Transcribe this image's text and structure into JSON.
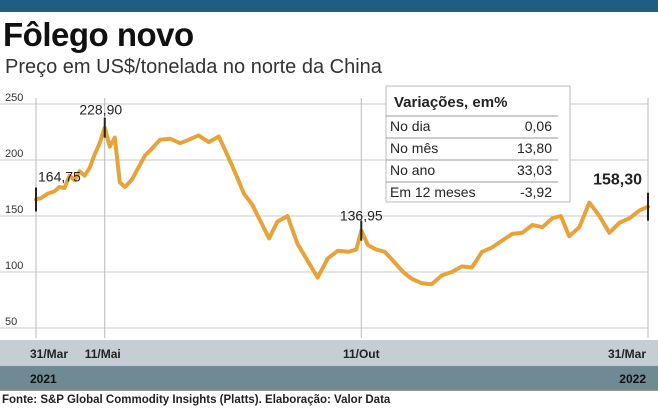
{
  "title": "Fôlego novo",
  "subtitle": "Preço em US$/tonelada no norte da China",
  "source": "Fonte: S&P Global Commodity Insights (Platts). Elaboração: Valor Data",
  "colors": {
    "line": "#e8a23a",
    "topbar": "#1f5e7e",
    "date_band": "#c7ced3",
    "year_band": "#6f8a94",
    "grid": "#c8c8c8"
  },
  "variations": {
    "title": "Variações, em%",
    "rows": [
      {
        "label": "No dia",
        "value": "0,06"
      },
      {
        "label": "No mês",
        "value": "13,80"
      },
      {
        "label": "No ano",
        "value": "33,03"
      },
      {
        "label": "Em 12 meses",
        "value": "-3,92"
      }
    ]
  },
  "chart_data": {
    "type": "line",
    "title": "Fôlego novo",
    "subtitle": "Preço em US$/tonelada no norte da China",
    "ylim": [
      50,
      250
    ],
    "yticks": [
      50,
      100,
      150,
      200,
      250
    ],
    "x_range": [
      "2021-03-31",
      "2022-03-31"
    ],
    "grid": true,
    "date_labels": [
      {
        "date": "2021-03-31",
        "label": "31/Mar"
      },
      {
        "date": "2021-05-11",
        "label": "11/Mai"
      },
      {
        "date": "2021-10-11",
        "label": "11/Out"
      },
      {
        "date": "2022-03-31",
        "label": "31/Mar"
      }
    ],
    "year_labels": [
      {
        "date": "2021-03-31",
        "label": "2021"
      },
      {
        "date": "2022-03-31",
        "label": "2022"
      }
    ],
    "annotations": [
      {
        "date": "2021-03-31",
        "value": 164.75,
        "label": "164,75"
      },
      {
        "date": "2021-05-11",
        "value": 228.9,
        "label": "228,90"
      },
      {
        "date": "2021-10-11",
        "value": 136.95,
        "label": "136,95"
      },
      {
        "date": "2022-03-31",
        "value": 158.3,
        "label": "158,30"
      }
    ],
    "series": [
      {
        "values": [
          [
            "2021-03-31",
            164.75
          ],
          [
            "2021-04-03",
            166
          ],
          [
            "2021-04-07",
            170
          ],
          [
            "2021-04-11",
            172
          ],
          [
            "2021-04-14",
            176
          ],
          [
            "2021-04-17",
            175
          ],
          [
            "2021-04-20",
            186
          ],
          [
            "2021-04-23",
            182
          ],
          [
            "2021-04-26",
            190
          ],
          [
            "2021-04-29",
            186
          ],
          [
            "2021-05-02",
            193
          ],
          [
            "2021-05-05",
            205
          ],
          [
            "2021-05-08",
            215
          ],
          [
            "2021-05-11",
            228.9
          ],
          [
            "2021-05-14",
            212
          ],
          [
            "2021-05-17",
            220
          ],
          [
            "2021-05-20",
            180
          ],
          [
            "2021-05-23",
            176
          ],
          [
            "2021-05-27",
            182
          ],
          [
            "2021-05-31",
            193
          ],
          [
            "2021-06-04",
            204
          ],
          [
            "2021-06-08",
            210
          ],
          [
            "2021-06-13",
            218
          ],
          [
            "2021-06-19",
            219
          ],
          [
            "2021-06-25",
            215
          ],
          [
            "2021-06-30",
            218
          ],
          [
            "2021-07-06",
            222
          ],
          [
            "2021-07-12",
            216
          ],
          [
            "2021-07-18",
            221
          ],
          [
            "2021-07-23",
            205
          ],
          [
            "2021-07-28",
            188
          ],
          [
            "2021-08-02",
            170
          ],
          [
            "2021-08-07",
            160
          ],
          [
            "2021-08-12",
            145
          ],
          [
            "2021-08-17",
            130
          ],
          [
            "2021-08-22",
            145
          ],
          [
            "2021-08-28",
            150
          ],
          [
            "2021-09-03",
            125
          ],
          [
            "2021-09-09",
            110
          ],
          [
            "2021-09-15",
            95
          ],
          [
            "2021-09-21",
            112
          ],
          [
            "2021-09-27",
            119
          ],
          [
            "2021-10-03",
            118
          ],
          [
            "2021-10-08",
            120
          ],
          [
            "2021-10-11",
            136.95
          ],
          [
            "2021-10-15",
            124
          ],
          [
            "2021-10-20",
            120
          ],
          [
            "2021-10-25",
            118
          ],
          [
            "2021-10-30",
            110
          ],
          [
            "2021-11-05",
            100
          ],
          [
            "2021-11-10",
            94
          ],
          [
            "2021-11-16",
            90
          ],
          [
            "2021-11-22",
            89
          ],
          [
            "2021-11-28",
            97
          ],
          [
            "2021-12-04",
            100
          ],
          [
            "2021-12-10",
            105
          ],
          [
            "2021-12-16",
            104
          ],
          [
            "2021-12-22",
            118
          ],
          [
            "2021-12-28",
            122
          ],
          [
            "2022-01-03",
            128
          ],
          [
            "2022-01-09",
            134
          ],
          [
            "2022-01-15",
            135
          ],
          [
            "2022-01-21",
            142
          ],
          [
            "2022-01-27",
            140
          ],
          [
            "2022-02-02",
            148
          ],
          [
            "2022-02-07",
            150
          ],
          [
            "2022-02-12",
            132
          ],
          [
            "2022-02-18",
            140
          ],
          [
            "2022-02-24",
            162
          ],
          [
            "2022-03-02",
            150
          ],
          [
            "2022-03-08",
            135
          ],
          [
            "2022-03-14",
            144
          ],
          [
            "2022-03-20",
            148
          ],
          [
            "2022-03-26",
            155
          ],
          [
            "2022-03-31",
            158.3
          ]
        ]
      }
    ]
  }
}
